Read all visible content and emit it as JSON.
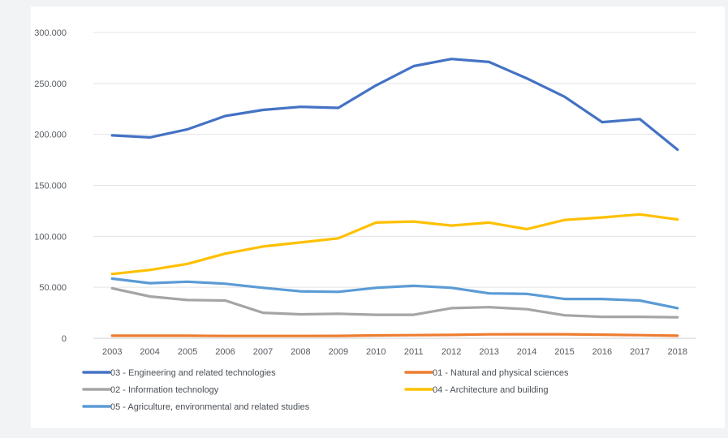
{
  "chart_data": {
    "type": "line",
    "title": "",
    "xlabel": "",
    "ylabel": "",
    "x": [
      "2003",
      "2004",
      "2005",
      "2006",
      "2007",
      "2008",
      "2009",
      "2010",
      "2011",
      "2012",
      "2013",
      "2014",
      "2015",
      "2016",
      "2017",
      "2018"
    ],
    "ylim": [
      0,
      300000
    ],
    "yticks": [
      "0",
      "50.000",
      "100.000",
      "150.000",
      "200.000",
      "250.000",
      "300.000"
    ],
    "ytick_values": [
      0,
      50000,
      100000,
      150000,
      200000,
      250000,
      300000
    ],
    "grid": true,
    "legend_position": "bottom",
    "series": [
      {
        "name": "03 - Engineering and related technologies",
        "color": "#4472c4",
        "values": [
          199000,
          197000,
          205000,
          218000,
          224000,
          227000,
          226000,
          248000,
          267000,
          274000,
          271000,
          255000,
          237000,
          212000,
          215000,
          185000
        ]
      },
      {
        "name": "01 - Natural and physical sciences",
        "color": "#ed7d31",
        "values": [
          2500,
          2500,
          2500,
          2200,
          2200,
          2200,
          2300,
          2800,
          3000,
          3300,
          3800,
          3900,
          3900,
          3500,
          3000,
          2500
        ]
      },
      {
        "name": "02 - Information technology",
        "color": "#a5a5a5",
        "values": [
          49000,
          41000,
          37500,
          37000,
          25000,
          23500,
          24000,
          23000,
          23000,
          29500,
          30500,
          28500,
          22500,
          21000,
          21000,
          20500
        ]
      },
      {
        "name": "04 - Architecture and building",
        "color": "#ffc000",
        "values": [
          63000,
          67000,
          73000,
          83000,
          90000,
          94000,
          98000,
          113500,
          114500,
          110500,
          113500,
          107000,
          116000,
          118500,
          121500,
          116500
        ]
      },
      {
        "name": "05 - Agriculture, environmental and related studies",
        "color": "#5b9bd5",
        "values": [
          58500,
          54000,
          55500,
          53500,
          49500,
          46000,
          45500,
          49500,
          51500,
          49500,
          44000,
          43500,
          38500,
          38500,
          37000,
          29500
        ]
      }
    ]
  }
}
